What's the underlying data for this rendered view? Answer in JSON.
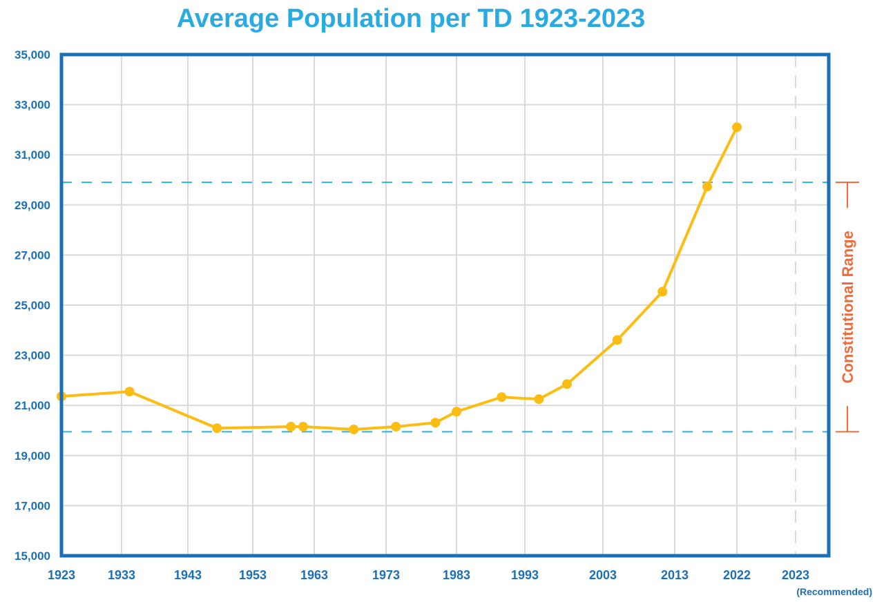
{
  "chart_data": {
    "type": "line",
    "title": "Average Population per TD 1923-2023",
    "xlabel": "",
    "ylabel": "",
    "ylim": [
      15000,
      35000
    ],
    "yticks": [
      15000,
      17000,
      19000,
      21000,
      23000,
      25000,
      27000,
      29000,
      31000,
      33000,
      35000
    ],
    "ytick_labels": [
      "15,000",
      "17,000",
      "19,000",
      "21,000",
      "23,000",
      "25,000",
      "27,000",
      "29,000",
      "31,000",
      "33,000",
      "35,000"
    ],
    "xticks": [
      {
        "label": "1923",
        "sublabel": ""
      },
      {
        "label": "1933",
        "sublabel": ""
      },
      {
        "label": "1943",
        "sublabel": ""
      },
      {
        "label": "1953",
        "sublabel": ""
      },
      {
        "label": "1963",
        "sublabel": ""
      },
      {
        "label": "1973",
        "sublabel": ""
      },
      {
        "label": "1983",
        "sublabel": ""
      },
      {
        "label": "1993",
        "sublabel": ""
      },
      {
        "label": "2003",
        "sublabel": ""
      },
      {
        "label": "2013",
        "sublabel": ""
      },
      {
        "label": "2022",
        "sublabel": ""
      },
      {
        "label": "2023",
        "sublabel": "(Recommended)"
      }
    ],
    "grid": true,
    "series": [
      {
        "name": "Average Population per TD",
        "color": "#fbbd14",
        "points": [
          {
            "x": 1923.0,
            "y": 21360
          },
          {
            "x": 1934.2,
            "y": 21550
          },
          {
            "x": 1947.5,
            "y": 20090
          },
          {
            "x": 1959.2,
            "y": 20150
          },
          {
            "x": 1961.2,
            "y": 20150
          },
          {
            "x": 1968.5,
            "y": 20040
          },
          {
            "x": 1974.4,
            "y": 20150
          },
          {
            "x": 1980.0,
            "y": 20310
          },
          {
            "x": 1983.0,
            "y": 20750
          },
          {
            "x": 1989.6,
            "y": 21330
          },
          {
            "x": 1994.8,
            "y": 21250
          },
          {
            "x": 1998.4,
            "y": 21850
          },
          {
            "x": 2005.0,
            "y": 23610
          },
          {
            "x": 2011.3,
            "y": 25540
          },
          {
            "x": 2017.7,
            "y": 29730
          },
          {
            "x": 2022.0,
            "y": 32100
          }
        ]
      }
    ],
    "reference_lines": [
      {
        "name": "constitutional-range-upper",
        "y": 29900,
        "color": "#29b4e0",
        "style": "dashed"
      },
      {
        "name": "constitutional-range-lower",
        "y": 19950,
        "color": "#29b4e0",
        "style": "dashed"
      }
    ],
    "recommended_marker": {
      "x_label": "2023",
      "style": "dashed",
      "color": "#d9d9d9"
    },
    "annotation": {
      "text": "Constitutional Range",
      "color": "#ee6a3a",
      "range": [
        19950,
        29900
      ]
    },
    "colors": {
      "title": "#29abe2",
      "axis": "#1a6fb7",
      "grid": "#d9d9d9",
      "line": "#fbbd14"
    }
  }
}
